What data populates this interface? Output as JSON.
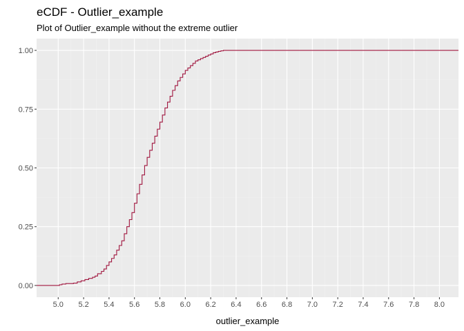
{
  "chart_data": {
    "type": "line",
    "step": true,
    "title": "eCDF - Outlier_example",
    "subtitle": "Plot of Outlier_example without the extreme outlier",
    "xlabel": "outlier_example",
    "ylabel": "",
    "xlim": [
      4.83,
      8.15
    ],
    "ylim": [
      -0.05,
      1.05
    ],
    "x_ticks": [
      "5.0",
      "5.2",
      "5.4",
      "5.6",
      "5.8",
      "6.0",
      "6.2",
      "6.4",
      "6.6",
      "6.8",
      "7.0",
      "7.2",
      "7.4",
      "7.6",
      "7.8",
      "8.0"
    ],
    "y_ticks": [
      "0.00",
      "0.25",
      "0.50",
      "0.75",
      "1.00"
    ],
    "grid": true,
    "legend": "none",
    "series": [
      {
        "x": [
          4.83,
          4.99,
          5.01,
          5.03,
          5.06,
          5.12,
          5.15,
          5.18,
          5.21,
          5.24,
          5.27,
          5.29,
          5.31,
          5.34,
          5.36,
          5.38,
          5.4,
          5.42,
          5.44,
          5.46,
          5.48,
          5.5,
          5.52,
          5.54,
          5.56,
          5.58,
          5.6,
          5.62,
          5.64,
          5.66,
          5.68,
          5.7,
          5.72,
          5.74,
          5.76,
          5.78,
          5.8,
          5.82,
          5.84,
          5.86,
          5.88,
          5.9,
          5.92,
          5.94,
          5.96,
          5.98,
          6.0,
          6.02,
          6.04,
          6.06,
          6.08,
          6.1,
          6.12,
          6.14,
          6.16,
          6.18,
          6.2,
          6.22,
          6.24,
          6.26,
          6.28,
          6.3,
          6.32,
          6.34,
          6.37,
          6.4,
          6.43,
          8.15
        ],
        "y": [
          0.0,
          0.0,
          0.003,
          0.006,
          0.008,
          0.01,
          0.015,
          0.02,
          0.025,
          0.03,
          0.035,
          0.04,
          0.05,
          0.06,
          0.07,
          0.085,
          0.1,
          0.115,
          0.13,
          0.15,
          0.17,
          0.19,
          0.22,
          0.25,
          0.28,
          0.31,
          0.35,
          0.39,
          0.43,
          0.47,
          0.51,
          0.545,
          0.575,
          0.605,
          0.635,
          0.665,
          0.695,
          0.725,
          0.755,
          0.78,
          0.805,
          0.83,
          0.85,
          0.87,
          0.885,
          0.9,
          0.915,
          0.925,
          0.935,
          0.945,
          0.955,
          0.96,
          0.965,
          0.97,
          0.975,
          0.98,
          0.985,
          0.99,
          0.993,
          0.996,
          0.998,
          1.0,
          1.0,
          1.0,
          1.0,
          1.0,
          1.0,
          1.0
        ],
        "color": "#a0153e"
      }
    ],
    "colors": {
      "panel": "#ebebeb",
      "grid_major": "#ffffff",
      "grid_minor": "#f2f2f2",
      "tick": "#333333",
      "tick_label": "#4d4d4d"
    }
  }
}
